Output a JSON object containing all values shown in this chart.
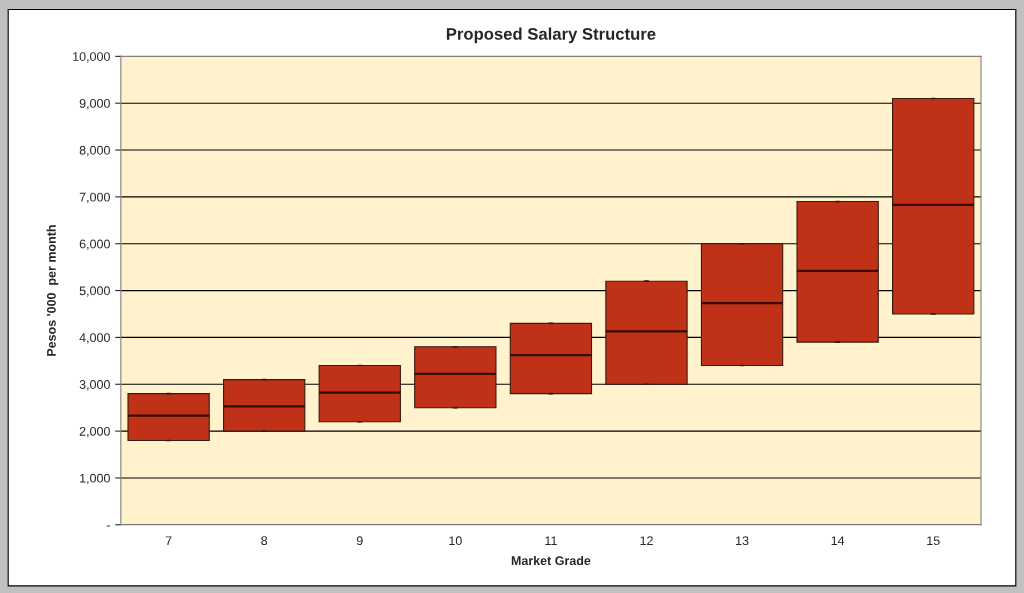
{
  "chart_data": {
    "type": "box",
    "title": "Proposed Salary Structure",
    "xlabel": "Market Grade",
    "ylabel": "Pesos '000  per month",
    "categories": [
      "7",
      "8",
      "9",
      "10",
      "11",
      "12",
      "13",
      "14",
      "15"
    ],
    "color": "#bf3218",
    "boxes": [
      {
        "low": 1800,
        "q1": 1800,
        "median": 2330,
        "q3": 2800,
        "high": 2800
      },
      {
        "low": 2000,
        "q1": 2000,
        "median": 2530,
        "q3": 3100,
        "high": 3100
      },
      {
        "low": 2200,
        "q1": 2200,
        "median": 2820,
        "q3": 3400,
        "high": 3400
      },
      {
        "low": 2500,
        "q1": 2500,
        "median": 3220,
        "q3": 3800,
        "high": 3800
      },
      {
        "low": 2800,
        "q1": 2800,
        "median": 3620,
        "q3": 4300,
        "high": 4300
      },
      {
        "low": 3000,
        "q1": 3000,
        "median": 4130,
        "q3": 5200,
        "high": 5200
      },
      {
        "low": 3400,
        "q1": 3400,
        "median": 4730,
        "q3": 6000,
        "high": 6000
      },
      {
        "low": 3900,
        "q1": 3900,
        "median": 5420,
        "q3": 6900,
        "high": 6900
      },
      {
        "low": 4500,
        "q1": 4500,
        "median": 6830,
        "q3": 9100,
        "high": 9100
      }
    ],
    "ylim": [
      0,
      10000
    ],
    "yticks": [
      {
        "value": 0,
        "label": "-"
      },
      {
        "value": 1000,
        "label": "1,000"
      },
      {
        "value": 2000,
        "label": "2,000"
      },
      {
        "value": 3000,
        "label": "3,000"
      },
      {
        "value": 4000,
        "label": "4,000"
      },
      {
        "value": 5000,
        "label": "5,000"
      },
      {
        "value": 6000,
        "label": "6,000"
      },
      {
        "value": 7000,
        "label": "7,000"
      },
      {
        "value": 8000,
        "label": "8,000"
      },
      {
        "value": 9000,
        "label": "9,000"
      },
      {
        "value": 10000,
        "label": "10,000"
      }
    ],
    "grid": "y"
  }
}
